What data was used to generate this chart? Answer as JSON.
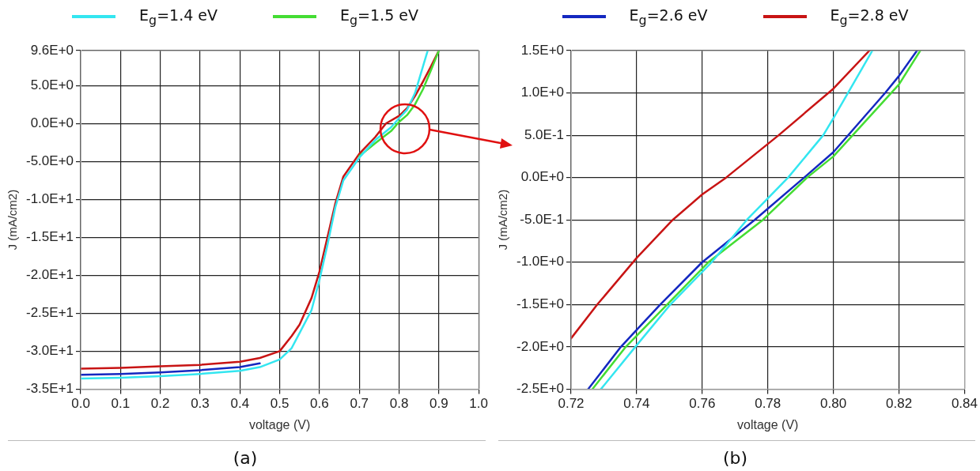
{
  "chart_data": [
    {
      "type": "line",
      "xlabel": "voltage (V)",
      "ylabel": "J (mA/cm2)",
      "legend": "top",
      "grid": true,
      "marker": "none",
      "line_style": "solid",
      "annotations": [
        "(a)"
      ],
      "xlim": [
        0,
        1
      ],
      "xticks": [
        {
          "value": 0,
          "label": "0.0"
        },
        0.1,
        0.2,
        0.3,
        0.4,
        0.5,
        0.6,
        0.7,
        0.8,
        0.9,
        {
          "value": 1,
          "label": "1.0"
        }
      ],
      "ylim": [
        -35,
        9.6
      ],
      "yticks": [
        {
          "value": 9.6,
          "label": "9.6E+0"
        },
        {
          "value": 5,
          "label": "5.0E+0"
        },
        {
          "value": 0,
          "label": "0.0E+0"
        },
        {
          "value": -5,
          "label": "-5.0E+0"
        },
        {
          "value": -10,
          "label": "-1.0E+1"
        },
        {
          "value": -15,
          "label": "-1.5E+1"
        },
        {
          "value": -20,
          "label": "-2.0E+1"
        },
        {
          "value": -25,
          "label": "-2.5E+1"
        },
        {
          "value": -30,
          "label": "-3.0E+1"
        },
        {
          "value": -35,
          "label": "-3.5E+1"
        }
      ],
      "series": [
        {
          "name": "E$_{g}$=1.4 eV",
          "color": "#33e6f0",
          "x": [
            0,
            0.1,
            0.2,
            0.3,
            0.4,
            0.45,
            0.5,
            0.53,
            0.55,
            0.58,
            0.6,
            0.62,
            0.64,
            0.66,
            0.7,
            0.74,
            0.78,
            0.8,
            0.82,
            0.84,
            0.86,
            0.872
          ],
          "values": [
            -33.6,
            -33.5,
            -33.3,
            -33.0,
            -32.6,
            -32.1,
            -31.1,
            -29.6,
            -27.6,
            -24.6,
            -20.6,
            -16,
            -11,
            -7.5,
            -4.5,
            -2.2,
            -0.5,
            0.7,
            1.8,
            4,
            7.5,
            9.6
          ]
        },
        {
          "color": "#1428c0",
          "x": [
            0,
            0.1,
            0.2,
            0.3,
            0.4,
            0.45
          ],
          "values": [
            -33.1,
            -33.0,
            -32.8,
            -32.5,
            -32.1,
            -31.6
          ]
        },
        {
          "name": "E$_{g}$=1.5 eV",
          "color": "#44dd33",
          "x": [
            0.7,
            0.74,
            0.78,
            0.8,
            0.82,
            0.84,
            0.86,
            0.88,
            0.9
          ],
          "values": [
            -4.3,
            -2.6,
            -1.0,
            0.2,
            1.1,
            2.5,
            4.5,
            7,
            9.6
          ]
        },
        {
          "color": "#c81414",
          "x": [
            0,
            0.1,
            0.2,
            0.3,
            0.4,
            0.45,
            0.5,
            0.53,
            0.55,
            0.58,
            0.6,
            0.62,
            0.64,
            0.66,
            0.7,
            0.74,
            0.767,
            0.8,
            0.82,
            0.84,
            0.86,
            0.88,
            0.9
          ],
          "values": [
            -32.3,
            -32.2,
            -32,
            -31.8,
            -31.4,
            -30.9,
            -30,
            -28,
            -26.5,
            -23,
            -19.5,
            -15,
            -10.5,
            -7,
            -4,
            -1.8,
            0,
            1.0,
            2,
            3.6,
            5.5,
            7.5,
            9.6
          ]
        }
      ]
    },
    {
      "type": "line",
      "xlabel": "voltage (V)",
      "ylabel": "J (mA/cm2)",
      "legend": "top",
      "grid": true,
      "marker": "none",
      "line_style": "solid",
      "annotations": [
        "(b)"
      ],
      "xlim": [
        0.72,
        0.84
      ],
      "xticks": [
        0.72,
        0.74,
        0.76,
        0.78,
        {
          "value": 0.8,
          "label": "0.80"
        },
        0.82,
        0.84
      ],
      "ylim": [
        -2.5,
        1.5
      ],
      "yticks": [
        {
          "value": 1.5,
          "label": "1.5E+0"
        },
        {
          "value": 1,
          "label": "1.0E+0"
        },
        {
          "value": 0.5,
          "label": "5.0E-1"
        },
        {
          "value": 0,
          "label": "0.0E+0"
        },
        {
          "value": -0.5,
          "label": "-5.0E-1"
        },
        {
          "value": -1,
          "label": "-1.0E+0"
        },
        {
          "value": -1.5,
          "label": "-1.5E+0"
        },
        {
          "value": -2,
          "label": "-2.0E+0"
        },
        {
          "value": -2.5,
          "label": "-2.5E+0"
        }
      ],
      "series": [
        {
          "color": "#33e6f0",
          "x": [
            0.7291,
            0.7396,
            0.7503,
            0.7629,
            0.7736,
            0.7862,
            0.7969,
            0.8,
            0.8119
          ],
          "values": [
            -2.5,
            -2.0,
            -1.5,
            -1.0,
            -0.5,
            0,
            0.5,
            0.7,
            1.5
          ]
        },
        {
          "color": "#44dd33",
          "x": [
            0.7265,
            0.7367,
            0.7493,
            0.7619,
            0.7785,
            0.792,
            0.8,
            0.82,
            0.8265
          ],
          "values": [
            -2.5,
            -2.0,
            -1.5,
            -1.0,
            -0.5,
            0,
            0.25,
            1.1,
            1.5
          ]
        },
        {
          "name": "E$_{g}$=2.6 eV",
          "color": "#1428c0",
          "x": [
            0.7252,
            0.7352,
            0.74,
            0.7472,
            0.76,
            0.776,
            0.7911,
            0.8,
            0.8158,
            0.82,
            0.8255
          ],
          "values": [
            -2.5,
            -2.0,
            -1.8,
            -1.5,
            -1.0,
            -0.5,
            0,
            0.3,
            1.0,
            1.2,
            1.5
          ]
        },
        {
          "name": "E$_{g}$=2.8 eV",
          "color": "#c81414",
          "x": [
            0.72,
            0.728,
            0.74,
            0.751,
            0.76,
            0.7673,
            0.7833,
            0.8,
            0.811
          ],
          "values": [
            -1.9,
            -1.5,
            -0.95,
            -0.5,
            -0.2,
            0,
            0.5,
            1.05,
            1.5
          ]
        }
      ]
    }
  ]
}
